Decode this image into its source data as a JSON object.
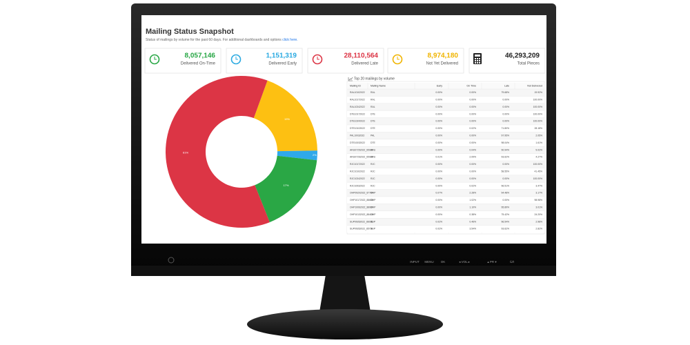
{
  "header": {
    "title": "Mailing Status Snapshot",
    "subtitle": "Status of mailings by volume for the past 60 days. For additional dashboards and options",
    "link": "click here."
  },
  "kpis": [
    {
      "value": "8,057,146",
      "label": "Delivered On-Time",
      "color": "#28a745"
    },
    {
      "value": "1,151,319",
      "label": "Delivered Early",
      "color": "#29a9e1"
    },
    {
      "value": "28,110,564",
      "label": "Delivered Late",
      "color": "#dc3545"
    },
    {
      "value": "8,974,180",
      "label": "Not Yet Delivered",
      "color": "#f0b400"
    },
    {
      "value": "46,293,209",
      "label": "Total Pieces",
      "color": "#222222"
    }
  ],
  "chart_data": {
    "type": "pie",
    "values": [
      19,
      2,
      17,
      61
    ],
    "value_labels": [
      "19%",
      "2%",
      "17%",
      "61%"
    ],
    "colors": [
      "#fdc012",
      "#2fa9ea",
      "#2aa745",
      "#dc3545"
    ]
  },
  "table": {
    "caption": "Top 20 mailings by volume",
    "columns": [
      "Mailing ID",
      "Mailing Name",
      "Early",
      "On Time",
      "Late",
      "Not Delivered"
    ],
    "rows": [
      [
        "RAL10102022",
        "RAL",
        "0.00%",
        "0.00%",
        "79.68%",
        "19.92%"
      ],
      [
        "RAL10172022",
        "RAL",
        "0.00%",
        "0.00%",
        "0.00%",
        "100.00%"
      ],
      [
        "RAL10242022",
        "RAL",
        "0.00%",
        "0.00%",
        "0.00%",
        "100.00%"
      ],
      [
        "DTE10172022",
        "DTE",
        "0.00%",
        "0.00%",
        "0.00%",
        "100.00%"
      ],
      [
        "DTE10242022",
        "DTE",
        "0.00%",
        "0.00%",
        "0.00%",
        "100.00%"
      ],
      [
        "DTE10102022",
        "DTE",
        "0.00%",
        "0.02%",
        "71.80%",
        "28.18%"
      ],
      [
        "PAL10032022",
        "PAL",
        "0.00%",
        "0.00%",
        "97.95%",
        "2.05%"
      ],
      [
        "DTE10032022",
        "DTE",
        "0.00%",
        "0.00%",
        "98.04%",
        "1.61%"
      ],
      [
        "ARU07252022_65020",
        "ARU",
        "0.00%",
        "0.04%",
        "90.94%",
        "9.02%"
      ],
      [
        "ARU07262022_65019",
        "ARU",
        "0.01%",
        "2.09%",
        "93.62%",
        "4.27%"
      ],
      [
        "RJC10172022",
        "RJC",
        "0.00%",
        "0.00%",
        "0.00%",
        "100.00%"
      ],
      [
        "RJC10102022",
        "RJC",
        "0.00%",
        "0.00%",
        "58.55%",
        "41.45%"
      ],
      [
        "RJC10242022",
        "RJC",
        "0.00%",
        "0.00%",
        "0.00%",
        "100.00%"
      ],
      [
        "RJC10032022",
        "RJC",
        "0.00%",
        "0.02%",
        "96.51%",
        "3.47%"
      ],
      [
        "OHP09202022_87784",
        "OHP",
        "0.07%",
        "2.28%",
        "94.48%",
        "3.17%"
      ],
      [
        "OHP10172022_88658",
        "OHP",
        "0.00%",
        "1.02%",
        "0.00%",
        "98.98%"
      ],
      [
        "OHP10062022_88087",
        "OHP",
        "0.00%",
        "1.10%",
        "95.89%",
        "3.01%"
      ],
      [
        "OHP10132022_88418",
        "OHP",
        "0.00%",
        "0.38%",
        "75.42%",
        "24.20%"
      ],
      [
        "SUP09262022_86035",
        "SUP",
        "0.02%",
        "0.46%",
        "96.54%",
        "2.98%"
      ],
      [
        "SUP09262022_85734",
        "SUP",
        "0.02%",
        "3.54%",
        "93.62%",
        "2.82%"
      ]
    ]
  },
  "bezel": {
    "buttons": [
      "INPUT",
      "MENU",
      "OK",
      "◂ VOL ▸",
      "▴ PR ▾",
      "⏻/I"
    ]
  }
}
